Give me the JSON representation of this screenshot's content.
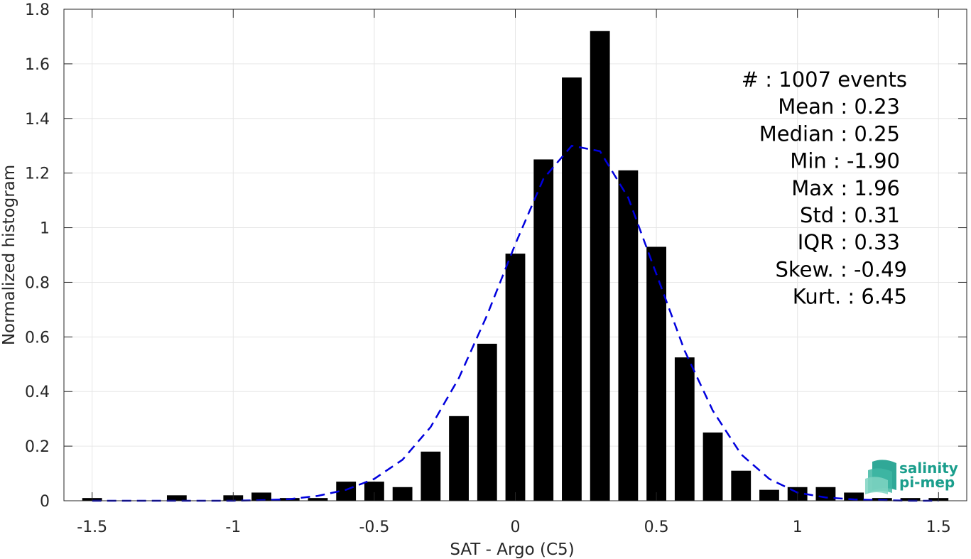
{
  "chart_data": {
    "type": "bar",
    "xlabel": "SAT - Argo (C5)",
    "ylabel": "Normalized histogram",
    "xlim": [
      -1.6,
      1.6
    ],
    "ylim": [
      0,
      1.8
    ],
    "x_ticks": [
      "-1.5",
      "-1",
      "-0.5",
      "0",
      "0.5",
      "1",
      "1.5"
    ],
    "y_ticks": [
      "0",
      "0.2",
      "0.4",
      "0.6",
      "0.8",
      "1",
      "1.2",
      "1.4",
      "1.6",
      "1.8"
    ],
    "grid": true,
    "bars": {
      "color": "#000000",
      "bin_width": 0.1,
      "x": [
        -1.5,
        -1.4,
        -1.3,
        -1.2,
        -1.1,
        -1.0,
        -0.9,
        -0.8,
        -0.7,
        -0.6,
        -0.5,
        -0.4,
        -0.3,
        -0.2,
        -0.1,
        0.0,
        0.1,
        0.2,
        0.3,
        0.4,
        0.5,
        0.6,
        0.7,
        0.8,
        0.9,
        1.0,
        1.1,
        1.2,
        1.3,
        1.4,
        1.5
      ],
      "values": [
        0.01,
        0,
        0,
        0.02,
        0,
        0.02,
        0.03,
        0.01,
        0.01,
        0.07,
        0.07,
        0.05,
        0.18,
        0.31,
        0.575,
        0.905,
        1.25,
        1.55,
        1.72,
        1.21,
        0.93,
        0.525,
        0.25,
        0.11,
        0.04,
        0.05,
        0.05,
        0.03,
        0.01,
        0.01,
        0.01
      ]
    },
    "fit_curve": {
      "style": "dashed",
      "color": "#0000dd",
      "x": [
        -1.5,
        -1.4,
        -1.3,
        -1.2,
        -1.1,
        -1.0,
        -0.9,
        -0.8,
        -0.7,
        -0.6,
        -0.5,
        -0.4,
        -0.3,
        -0.2,
        -0.1,
        0.0,
        0.1,
        0.2,
        0.3,
        0.4,
        0.5,
        0.6,
        0.7,
        0.8,
        0.9,
        1.0,
        1.1,
        1.2,
        1.3,
        1.4,
        1.5
      ],
      "y": [
        0.0,
        0.0,
        0.0,
        0.0,
        0.0,
        0.0,
        0.002,
        0.006,
        0.018,
        0.04,
        0.08,
        0.15,
        0.27,
        0.45,
        0.68,
        0.94,
        1.18,
        1.3,
        1.28,
        1.11,
        0.83,
        0.55,
        0.33,
        0.17,
        0.08,
        0.03,
        0.012,
        0.005,
        0.002,
        0.0,
        0.0
      ]
    },
    "annotations": [
      "#  : 1007 events",
      "Mean : 0.23",
      "Median : 0.25",
      "Min : -1.90",
      "Max : 1.96",
      "Std : 0.31",
      "IQR : 0.33",
      "Skew. : -0.49",
      "Kurt. : 6.45"
    ]
  },
  "logo": {
    "line1": "salinity",
    "line2": "pi-mep"
  }
}
